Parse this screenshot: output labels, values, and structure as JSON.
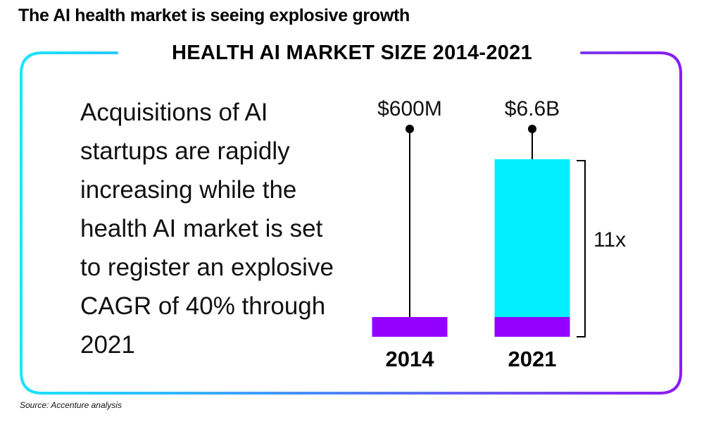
{
  "headline": "The AI health market is seeing explosive growth",
  "description": "Acquisitions of AI startups are rapidly increasing while the health AI market is set to register an explosive CAGR of 40% through 2021",
  "source": "Source: Accenture analysis",
  "colors": {
    "frame_start": "#19e5ff",
    "frame_end": "#8a1cf0",
    "cyan": "#00f0ff",
    "purple": "#9400ff"
  },
  "chart_data": {
    "type": "bar",
    "title": "HEALTH AI MARKET SIZE 2014-2021",
    "categories": [
      "2014",
      "2021"
    ],
    "values": [
      0.6,
      6.6
    ],
    "value_labels": [
      "$600M",
      "$6.6B"
    ],
    "unit": "billion USD",
    "annotation": "11x",
    "ylim": [
      0,
      6.6
    ],
    "grid": false
  }
}
